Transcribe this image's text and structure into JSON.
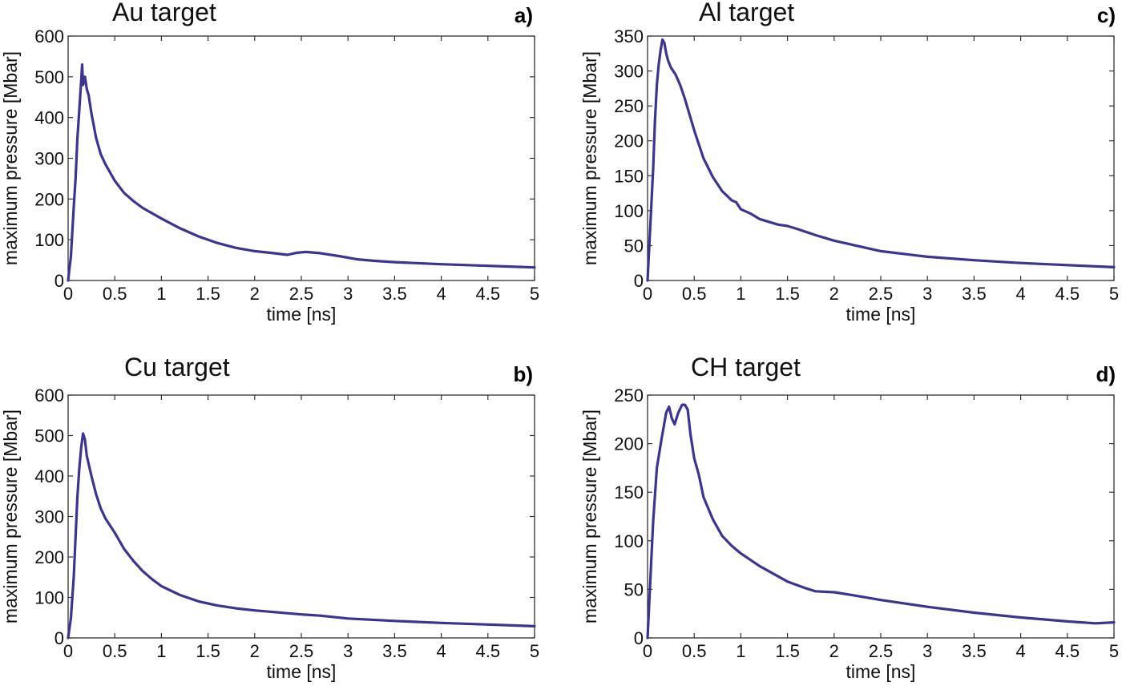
{
  "chart_data": [
    {
      "type": "line",
      "panel": "a)",
      "title": "Au target",
      "xlabel": "time [ns]",
      "ylabel": "maximum pressure [Mbar]",
      "xlim": [
        0,
        5
      ],
      "ylim": [
        0,
        600
      ],
      "xticks": [
        "0",
        "0.5",
        "1",
        "1.5",
        "2",
        "2.5",
        "3",
        "3.5",
        "4",
        "4.5",
        "5"
      ],
      "yticks": [
        "0",
        "100",
        "200",
        "300",
        "400",
        "500",
        "600"
      ],
      "grid": false,
      "color": "#3b3491",
      "x": [
        0,
        0.03,
        0.06,
        0.08,
        0.1,
        0.12,
        0.14,
        0.15,
        0.16,
        0.18,
        0.2,
        0.22,
        0.25,
        0.3,
        0.35,
        0.4,
        0.5,
        0.6,
        0.7,
        0.8,
        0.9,
        1.0,
        1.2,
        1.4,
        1.6,
        1.8,
        2.0,
        2.2,
        2.35,
        2.45,
        2.55,
        2.7,
        2.9,
        3.1,
        3.3,
        3.5,
        4.0,
        4.5,
        5.0
      ],
      "y": [
        0,
        60,
        180,
        250,
        350,
        420,
        490,
        530,
        480,
        500,
        470,
        455,
        410,
        350,
        310,
        285,
        245,
        215,
        195,
        178,
        165,
        152,
        128,
        108,
        92,
        80,
        72,
        67,
        63,
        68,
        70,
        67,
        60,
        52,
        48,
        45,
        40,
        36,
        32
      ]
    },
    {
      "type": "line",
      "panel": "b)",
      "title": "Cu target",
      "xlabel": "time [ns]",
      "ylabel": "maximum pressure [Mbar]",
      "xlim": [
        0,
        5
      ],
      "ylim": [
        0,
        600
      ],
      "xticks": [
        "0",
        "0.5",
        "1",
        "1.5",
        "2",
        "2.5",
        "3",
        "3.5",
        "4",
        "4.5",
        "5"
      ],
      "yticks": [
        "0",
        "100",
        "200",
        "300",
        "400",
        "500",
        "600"
      ],
      "grid": false,
      "color": "#3b3491",
      "x": [
        0,
        0.03,
        0.06,
        0.08,
        0.1,
        0.12,
        0.14,
        0.16,
        0.18,
        0.2,
        0.25,
        0.3,
        0.35,
        0.4,
        0.5,
        0.6,
        0.7,
        0.8,
        0.9,
        1.0,
        1.2,
        1.4,
        1.6,
        1.8,
        2.0,
        2.2,
        2.5,
        2.7,
        3.0,
        3.5,
        4.0,
        4.5,
        5.0
      ],
      "y": [
        0,
        50,
        150,
        250,
        350,
        420,
        470,
        505,
        490,
        450,
        400,
        355,
        320,
        295,
        260,
        220,
        190,
        165,
        145,
        128,
        106,
        90,
        80,
        73,
        68,
        64,
        58,
        55,
        48,
        42,
        37,
        33,
        29
      ]
    },
    {
      "type": "line",
      "panel": "c)",
      "title": "Al target",
      "xlabel": "time [ns]",
      "ylabel": "maximum pressure [Mbar]",
      "xlim": [
        0,
        5
      ],
      "ylim": [
        0,
        350
      ],
      "xticks": [
        "0",
        "0.5",
        "1",
        "1.5",
        "2",
        "2.5",
        "3",
        "3.5",
        "4",
        "4.5",
        "5"
      ],
      "yticks": [
        "0",
        "50",
        "100",
        "150",
        "200",
        "250",
        "300",
        "350"
      ],
      "grid": false,
      "color": "#3b3491",
      "x": [
        0,
        0.03,
        0.06,
        0.08,
        0.1,
        0.12,
        0.14,
        0.16,
        0.18,
        0.2,
        0.22,
        0.25,
        0.3,
        0.35,
        0.4,
        0.5,
        0.6,
        0.7,
        0.8,
        0.9,
        0.95,
        1.0,
        1.1,
        1.2,
        1.4,
        1.5,
        1.6,
        1.8,
        2.0,
        2.5,
        3.0,
        3.5,
        4.0,
        4.5,
        5.0
      ],
      "y": [
        0,
        80,
        160,
        230,
        280,
        310,
        330,
        345,
        340,
        325,
        315,
        305,
        295,
        280,
        260,
        215,
        175,
        148,
        128,
        115,
        112,
        102,
        96,
        88,
        80,
        78,
        74,
        65,
        57,
        42,
        34,
        29,
        25,
        22,
        19
      ]
    },
    {
      "type": "line",
      "panel": "d)",
      "title": "CH target",
      "xlabel": "time [ns]",
      "ylabel": "maximum pressure [Mbar]",
      "xlim": [
        0,
        5
      ],
      "ylim": [
        0,
        250
      ],
      "xticks": [
        "0",
        "0.5",
        "1",
        "1.5",
        "2",
        "2.5",
        "3",
        "3.5",
        "4",
        "4.5",
        "5"
      ],
      "yticks": [
        "0",
        "50",
        "100",
        "150",
        "200",
        "250"
      ],
      "grid": false,
      "color": "#3b3491",
      "x": [
        0,
        0.03,
        0.06,
        0.1,
        0.15,
        0.2,
        0.23,
        0.26,
        0.29,
        0.33,
        0.37,
        0.4,
        0.43,
        0.46,
        0.5,
        0.55,
        0.6,
        0.7,
        0.8,
        0.9,
        1.0,
        1.2,
        1.5,
        1.7,
        1.8,
        2.0,
        2.2,
        2.5,
        3.0,
        3.5,
        4.0,
        4.5,
        4.8,
        5.0
      ],
      "y": [
        0,
        60,
        120,
        175,
        205,
        232,
        238,
        226,
        220,
        232,
        240,
        240,
        235,
        210,
        185,
        168,
        145,
        122,
        105,
        95,
        87,
        74,
        58,
        51,
        48,
        47,
        44,
        39,
        32,
        26,
        21,
        17,
        15,
        16
      ]
    }
  ]
}
